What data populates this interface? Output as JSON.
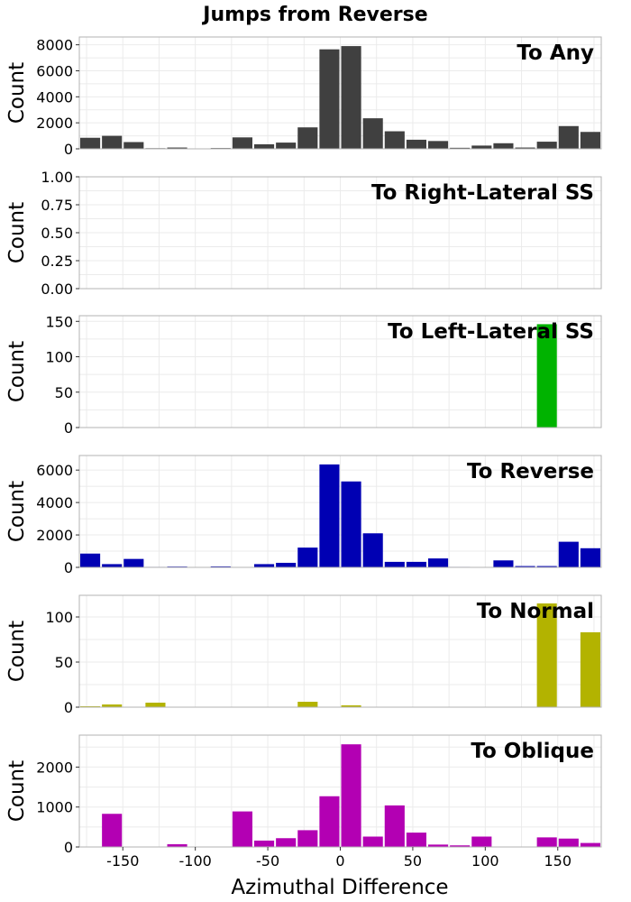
{
  "title": "Jumps from Reverse",
  "xlabel": "Azimuthal Difference",
  "chart_data": [
    {
      "type": "bar",
      "title": "To Any",
      "ylabel": "Count",
      "color": "#404040",
      "xlim": [
        -180,
        180
      ],
      "ylim": [
        0,
        8600
      ],
      "yticks": [
        0,
        2000,
        4000,
        6000,
        8000
      ],
      "ytick_labels": [
        "0",
        "2000",
        "4000",
        "6000",
        "8000"
      ],
      "xticks": [
        -150,
        -100,
        -50,
        0,
        50,
        100,
        150
      ],
      "bin_width": 15,
      "x": [
        -172.5,
        -157.5,
        -142.5,
        -127.5,
        -112.5,
        -97.5,
        -82.5,
        -67.5,
        -52.5,
        -37.5,
        -22.5,
        -7.5,
        7.5,
        22.5,
        37.5,
        52.5,
        67.5,
        82.5,
        97.5,
        112.5,
        127.5,
        142.5,
        157.5,
        172.5
      ],
      "values": [
        850,
        1000,
        520,
        50,
        100,
        10,
        60,
        880,
        350,
        480,
        1650,
        7650,
        7900,
        2350,
        1350,
        700,
        600,
        80,
        250,
        430,
        100,
        550,
        1750,
        1300
      ]
    },
    {
      "type": "bar",
      "title": "To Right-Lateral SS",
      "ylabel": "Count",
      "color": "#404040",
      "xlim": [
        -180,
        180
      ],
      "ylim": [
        0,
        1
      ],
      "yticks": [
        0,
        0.25,
        0.5,
        0.75,
        1
      ],
      "ytick_labels": [
        "0.00",
        "0.25",
        "0.50",
        "0.75",
        "1.00"
      ],
      "xticks": [
        -150,
        -100,
        -50,
        0,
        50,
        100,
        150
      ],
      "bin_width": 15,
      "x": [],
      "values": []
    },
    {
      "type": "bar",
      "title": "To Left-Lateral SS",
      "ylabel": "Count",
      "color": "#00b300",
      "xlim": [
        -180,
        180
      ],
      "ylim": [
        0,
        158
      ],
      "yticks": [
        0,
        50,
        100,
        150
      ],
      "ytick_labels": [
        "0",
        "50",
        "100",
        "150"
      ],
      "xticks": [
        -150,
        -100,
        -50,
        0,
        50,
        100,
        150
      ],
      "bin_width": 15,
      "x": [
        142.5
      ],
      "values": [
        146
      ]
    },
    {
      "type": "bar",
      "title": "To Reverse",
      "ylabel": "Count",
      "color": "#0000b3",
      "xlim": [
        -180,
        180
      ],
      "ylim": [
        0,
        6900
      ],
      "yticks": [
        0,
        2000,
        4000,
        6000
      ],
      "ytick_labels": [
        "0",
        "2000",
        "4000",
        "6000"
      ],
      "xticks": [
        -150,
        -100,
        -50,
        0,
        50,
        100,
        150
      ],
      "bin_width": 15,
      "x": [
        -172.5,
        -157.5,
        -142.5,
        -127.5,
        -112.5,
        -97.5,
        -82.5,
        -67.5,
        -52.5,
        -37.5,
        -22.5,
        -7.5,
        7.5,
        22.5,
        37.5,
        52.5,
        67.5,
        82.5,
        97.5,
        112.5,
        127.5,
        142.5,
        157.5,
        172.5
      ],
      "values": [
        850,
        200,
        520,
        30,
        50,
        0,
        60,
        20,
        200,
        280,
        1220,
        6350,
        5300,
        2100,
        340,
        340,
        550,
        30,
        20,
        430,
        80,
        80,
        1580,
        1180
      ]
    },
    {
      "type": "bar",
      "title": "To Normal",
      "ylabel": "Count",
      "color": "#b3b300",
      "xlim": [
        -180,
        180
      ],
      "ylim": [
        0,
        124
      ],
      "yticks": [
        0,
        50,
        100
      ],
      "ytick_labels": [
        "0",
        "50",
        "100"
      ],
      "xticks": [
        -150,
        -100,
        -50,
        0,
        50,
        100,
        150
      ],
      "bin_width": 15,
      "x": [
        -172.5,
        -157.5,
        -127.5,
        -22.5,
        7.5,
        142.5,
        172.5
      ],
      "values": [
        1,
        3,
        5,
        6,
        2,
        115,
        83
      ]
    },
    {
      "type": "bar",
      "title": "To Oblique",
      "ylabel": "Count",
      "color": "#b300b3",
      "xlim": [
        -180,
        180
      ],
      "ylim": [
        0,
        2800
      ],
      "yticks": [
        0,
        1000,
        2000
      ],
      "ytick_labels": [
        "0",
        "1000",
        "2000"
      ],
      "xticks": [
        -150,
        -100,
        -50,
        0,
        50,
        100,
        150
      ],
      "xtick_labels": [
        "-150",
        "-100",
        "-50",
        "0",
        "50",
        "100",
        "150"
      ],
      "bin_width": 15,
      "x": [
        -172.5,
        -157.5,
        -142.5,
        -127.5,
        -112.5,
        -97.5,
        -82.5,
        -67.5,
        -52.5,
        -37.5,
        -22.5,
        -7.5,
        7.5,
        22.5,
        37.5,
        52.5,
        67.5,
        82.5,
        97.5,
        112.5,
        127.5,
        142.5,
        157.5,
        172.5
      ],
      "values": [
        10,
        830,
        0,
        0,
        70,
        10,
        0,
        890,
        160,
        220,
        420,
        1270,
        2570,
        260,
        1040,
        360,
        60,
        40,
        260,
        0,
        0,
        240,
        210,
        100
      ]
    }
  ]
}
